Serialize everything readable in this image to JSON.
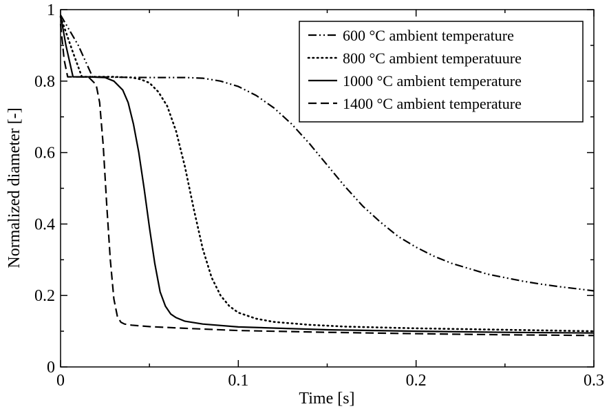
{
  "chart_data": {
    "type": "line",
    "title": "",
    "xlabel": "Time [s]",
    "ylabel": "Normalized diameter [-]",
    "xlim": [
      0,
      0.3
    ],
    "ylim": [
      0,
      1
    ],
    "xticks": [
      0,
      0.1,
      0.2,
      0.3
    ],
    "yticks": [
      0,
      0.2,
      0.4,
      0.6,
      0.8,
      1
    ],
    "xtick_labels": [
      "0",
      "0.1",
      "0.2",
      "0.3"
    ],
    "ytick_labels": [
      "0",
      "0.2",
      "0.4",
      "0.6",
      "0.8",
      "1"
    ],
    "grid": false,
    "legend_position": "top-right",
    "series": [
      {
        "name": "600 °C ambient temperature",
        "dash": "dash-dot-dot",
        "x": [
          0,
          0.01,
          0.018,
          0.03,
          0.05,
          0.06,
          0.07,
          0.08,
          0.09,
          0.1,
          0.11,
          0.12,
          0.13,
          0.14,
          0.15,
          0.16,
          0.17,
          0.18,
          0.19,
          0.2,
          0.21,
          0.22,
          0.23,
          0.24,
          0.25,
          0.26,
          0.27,
          0.28,
          0.29,
          0.3
        ],
        "y": [
          0.985,
          0.9,
          0.812,
          0.811,
          0.81,
          0.81,
          0.81,
          0.808,
          0.8,
          0.785,
          0.76,
          0.725,
          0.68,
          0.625,
          0.565,
          0.505,
          0.45,
          0.405,
          0.365,
          0.335,
          0.31,
          0.29,
          0.275,
          0.26,
          0.25,
          0.24,
          0.232,
          0.225,
          0.219,
          0.213
        ]
      },
      {
        "name": "800 °C ambient  temperatuure",
        "dash": "dotted",
        "x": [
          0,
          0.007,
          0.012,
          0.03,
          0.04,
          0.045,
          0.05,
          0.055,
          0.06,
          0.065,
          0.07,
          0.075,
          0.08,
          0.085,
          0.09,
          0.095,
          0.1,
          0.11,
          0.12,
          0.14,
          0.16,
          0.2,
          0.25,
          0.3
        ],
        "y": [
          0.98,
          0.88,
          0.812,
          0.812,
          0.81,
          0.805,
          0.795,
          0.77,
          0.73,
          0.66,
          0.56,
          0.44,
          0.33,
          0.25,
          0.2,
          0.17,
          0.152,
          0.135,
          0.126,
          0.118,
          0.113,
          0.108,
          0.104,
          0.1
        ]
      },
      {
        "name": "1000 °C ambient temperature",
        "dash": "solid",
        "x": [
          0,
          0.003,
          0.007,
          0.015,
          0.025,
          0.03,
          0.035,
          0.038,
          0.041,
          0.044,
          0.047,
          0.05,
          0.053,
          0.056,
          0.059,
          0.062,
          0.065,
          0.07,
          0.08,
          0.1,
          0.15,
          0.2,
          0.25,
          0.3
        ],
        "y": [
          0.985,
          0.9,
          0.812,
          0.812,
          0.81,
          0.8,
          0.775,
          0.74,
          0.68,
          0.6,
          0.5,
          0.39,
          0.29,
          0.21,
          0.17,
          0.148,
          0.138,
          0.128,
          0.12,
          0.112,
          0.104,
          0.1,
          0.097,
          0.095
        ]
      },
      {
        "name": "1400 °C ambient temperature",
        "dash": "dashed",
        "x": [
          0,
          0.002,
          0.004,
          0.008,
          0.012,
          0.016,
          0.02,
          0.022,
          0.024,
          0.026,
          0.028,
          0.03,
          0.032,
          0.034,
          0.036,
          0.04,
          0.05,
          0.07,
          0.1,
          0.15,
          0.2,
          0.25,
          0.3
        ],
        "y": [
          0.96,
          0.86,
          0.812,
          0.812,
          0.812,
          0.81,
          0.79,
          0.74,
          0.62,
          0.45,
          0.3,
          0.19,
          0.14,
          0.125,
          0.12,
          0.117,
          0.113,
          0.108,
          0.102,
          0.097,
          0.093,
          0.09,
          0.088
        ]
      }
    ]
  }
}
